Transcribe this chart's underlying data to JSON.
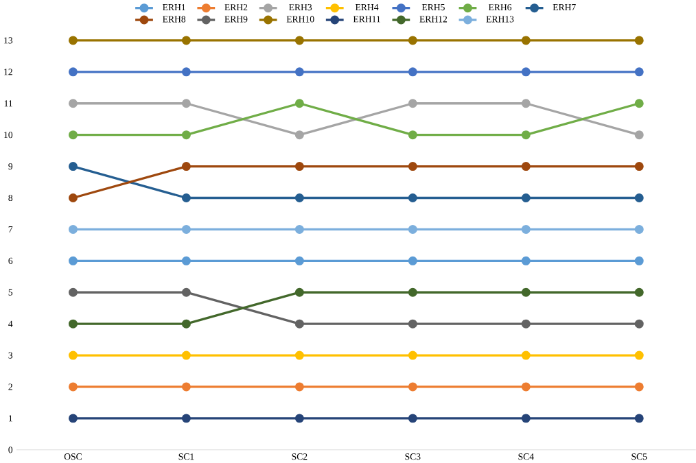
{
  "chart_data": {
    "type": "line",
    "categories": [
      "OSC",
      "SC1",
      "SC2",
      "SC3",
      "SC4",
      "SC5"
    ],
    "ylim": [
      0,
      13
    ],
    "yticks": [
      0,
      1,
      2,
      3,
      4,
      5,
      6,
      7,
      8,
      9,
      10,
      11,
      12,
      13
    ],
    "legend": "top",
    "marker": "circle",
    "line_style": "solid",
    "series": [
      {
        "name": "ERH1",
        "color": "#5b9bd5",
        "values": [
          6,
          6,
          6,
          6,
          6,
          6
        ]
      },
      {
        "name": "ERH2",
        "color": "#ed7d31",
        "values": [
          2,
          2,
          2,
          2,
          2,
          2
        ]
      },
      {
        "name": "ERH3",
        "color": "#a5a5a5",
        "values": [
          11,
          11,
          10,
          11,
          11,
          10
        ]
      },
      {
        "name": "ERH4",
        "color": "#ffc000",
        "values": [
          3,
          3,
          3,
          3,
          3,
          3
        ]
      },
      {
        "name": "ERH5",
        "color": "#4472c4",
        "values": [
          12,
          12,
          12,
          12,
          12,
          12
        ]
      },
      {
        "name": "ERH6",
        "color": "#70ad47",
        "values": [
          10,
          10,
          11,
          10,
          10,
          11
        ]
      },
      {
        "name": "ERH7",
        "color": "#255e91",
        "values": [
          9,
          8,
          8,
          8,
          8,
          8
        ]
      },
      {
        "name": "ERH8",
        "color": "#9e480e",
        "values": [
          8,
          9,
          9,
          9,
          9,
          9
        ]
      },
      {
        "name": "ERH9",
        "color": "#636363",
        "values": [
          5,
          5,
          4,
          4,
          4,
          4
        ]
      },
      {
        "name": "ERH10",
        "color": "#997300",
        "values": [
          13,
          13,
          13,
          13,
          13,
          13
        ]
      },
      {
        "name": "ERH11",
        "color": "#264478",
        "values": [
          1,
          1,
          1,
          1,
          1,
          1
        ]
      },
      {
        "name": "ERH12",
        "color": "#43682b",
        "values": [
          4,
          4,
          5,
          5,
          5,
          5
        ]
      },
      {
        "name": "ERH13",
        "color": "#7cafdd",
        "values": [
          7,
          7,
          7,
          7,
          7,
          7
        ]
      }
    ]
  }
}
